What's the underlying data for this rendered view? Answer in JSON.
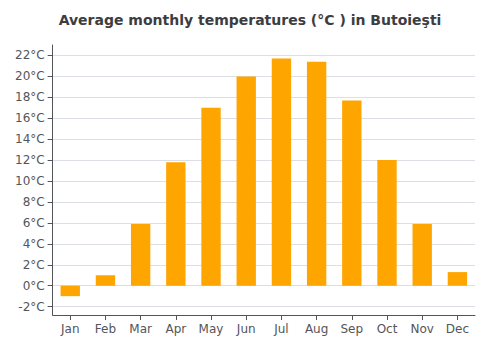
{
  "chart_data": {
    "type": "bar",
    "title": "Average monthly temperatures (°C ) in Butoieşti",
    "categories": [
      "Jan",
      "Feb",
      "Mar",
      "Apr",
      "May",
      "Jun",
      "Jul",
      "Aug",
      "Sep",
      "Oct",
      "Nov",
      "Dec"
    ],
    "values": [
      -1.0,
      1.0,
      5.9,
      11.8,
      17.0,
      20.0,
      21.7,
      21.4,
      17.7,
      12.0,
      5.9,
      1.3
    ],
    "color": "#FFA500",
    "ylim": [
      -2.8,
      23.0
    ],
    "yticks": [
      {
        "value": -2,
        "label": "-2°C"
      },
      {
        "value": 0,
        "label": "0°C"
      },
      {
        "value": 2,
        "label": "2°C"
      },
      {
        "value": 4,
        "label": "4°C"
      },
      {
        "value": 6,
        "label": "6°C"
      },
      {
        "value": 8,
        "label": "8°C"
      },
      {
        "value": 10,
        "label": "10°C"
      },
      {
        "value": 12,
        "label": "12°C"
      },
      {
        "value": 14,
        "label": "14°C"
      },
      {
        "value": 16,
        "label": "16°C"
      },
      {
        "value": 18,
        "label": "18°C"
      },
      {
        "value": 20,
        "label": "20°C"
      },
      {
        "value": 22,
        "label": "22°C"
      }
    ],
    "grid": true
  }
}
